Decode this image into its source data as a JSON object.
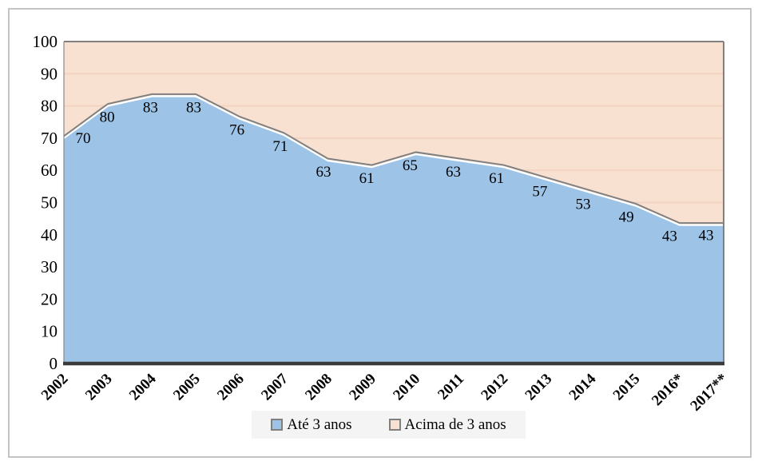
{
  "chart_data": {
    "type": "area",
    "stacked": true,
    "percent_total": 100,
    "categories": [
      "2002",
      "2003",
      "2004",
      "2005",
      "2006",
      "2007",
      "2008",
      "2009",
      "2010",
      "2011",
      "2012",
      "2013",
      "2014",
      "2015",
      "2016*",
      "2017**"
    ],
    "series": [
      {
        "name": "Até 3 anos",
        "color": "#9DC3E6",
        "values": [
          70,
          80,
          83,
          83,
          76,
          71,
          63,
          61,
          65,
          63,
          61,
          57,
          53,
          49,
          43,
          43
        ]
      },
      {
        "name": "Acima de 3 anos",
        "color": "#F9E1D2",
        "values": [
          30,
          20,
          17,
          17,
          24,
          29,
          37,
          39,
          35,
          37,
          39,
          43,
          47,
          51,
          57,
          57
        ]
      }
    ],
    "data_labels": {
      "series": "Até 3 anos",
      "values": [
        70,
        80,
        83,
        83,
        76,
        71,
        63,
        61,
        65,
        63,
        61,
        57,
        53,
        49,
        43,
        43
      ]
    },
    "title": "",
    "xlabel": "",
    "ylabel": "",
    "ylim": [
      0,
      100
    ],
    "ytick_step": 10,
    "yticks": [
      0,
      10,
      20,
      30,
      40,
      50,
      60,
      70,
      80,
      90,
      100
    ],
    "grid": true,
    "gridlines_visible_in": "Acima de 3 anos",
    "legend_position": "bottom"
  },
  "colors": {
    "blue_area": "#9DC3E6",
    "peach_area": "#F9E1D2",
    "gridline": "#F4D5C3",
    "boundary_line": "#808080",
    "boundary_gap": "#FFFFFF",
    "plot_border_top_right": "#808080",
    "plot_border_left": "#8A8A8A",
    "axis_bottom": "#3A3A3A",
    "frame_border": "#C4C4C4",
    "legend_background": "#F4F4F4",
    "text": "#000000"
  }
}
